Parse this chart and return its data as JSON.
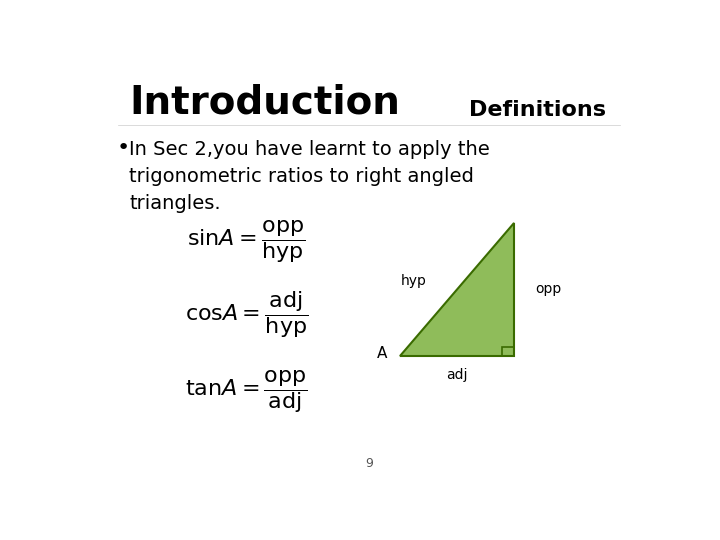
{
  "bg_color": "#ffffff",
  "title": "Introduction",
  "title_fontsize": 28,
  "subtitle": "Definitions",
  "subtitle_fontsize": 16,
  "bullet_text_lines": [
    "In Sec 2,you have learnt to apply the",
    "trigonometric ratios to right angled",
    "triangles."
  ],
  "bullet_fontsize": 14,
  "formula_fontsize": 16,
  "triangle_color": "#8fbc5a",
  "triangle_edge_color": "#3a6b00",
  "page_number": "9",
  "page_number_fontsize": 9
}
